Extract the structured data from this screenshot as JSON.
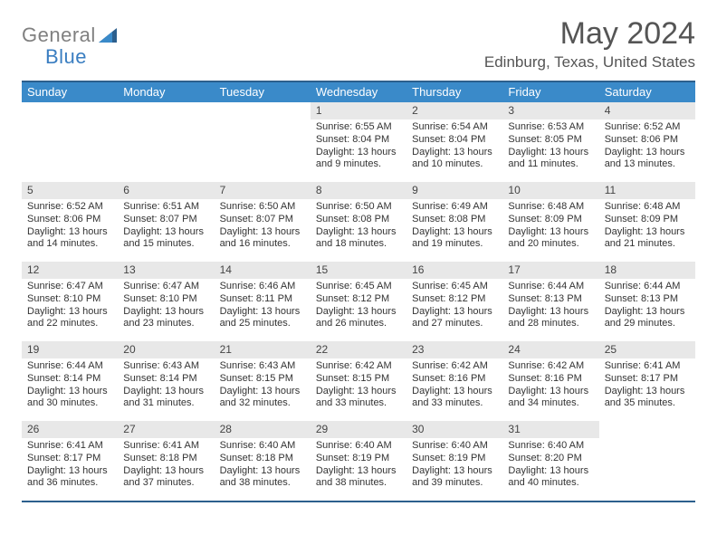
{
  "logo": {
    "text1": "General",
    "text2": "Blue"
  },
  "title": "May 2024",
  "location": "Edinburg, Texas, United States",
  "colors": {
    "header_bg": "#3a8ac9",
    "border": "#2c5f8d",
    "daynum_bg": "#e8e8e8",
    "logo_gray": "#808080",
    "logo_blue": "#3a7ec1",
    "text": "#333333",
    "title_color": "#555555"
  },
  "day_headers": [
    "Sunday",
    "Monday",
    "Tuesday",
    "Wednesday",
    "Thursday",
    "Friday",
    "Saturday"
  ],
  "weeks": [
    [
      {
        "n": "",
        "sr": "",
        "ss": "",
        "dl": ""
      },
      {
        "n": "",
        "sr": "",
        "ss": "",
        "dl": ""
      },
      {
        "n": "",
        "sr": "",
        "ss": "",
        "dl": ""
      },
      {
        "n": "1",
        "sr": "Sunrise: 6:55 AM",
        "ss": "Sunset: 8:04 PM",
        "dl": "Daylight: 13 hours and 9 minutes."
      },
      {
        "n": "2",
        "sr": "Sunrise: 6:54 AM",
        "ss": "Sunset: 8:04 PM",
        "dl": "Daylight: 13 hours and 10 minutes."
      },
      {
        "n": "3",
        "sr": "Sunrise: 6:53 AM",
        "ss": "Sunset: 8:05 PM",
        "dl": "Daylight: 13 hours and 11 minutes."
      },
      {
        "n": "4",
        "sr": "Sunrise: 6:52 AM",
        "ss": "Sunset: 8:06 PM",
        "dl": "Daylight: 13 hours and 13 minutes."
      }
    ],
    [
      {
        "n": "5",
        "sr": "Sunrise: 6:52 AM",
        "ss": "Sunset: 8:06 PM",
        "dl": "Daylight: 13 hours and 14 minutes."
      },
      {
        "n": "6",
        "sr": "Sunrise: 6:51 AM",
        "ss": "Sunset: 8:07 PM",
        "dl": "Daylight: 13 hours and 15 minutes."
      },
      {
        "n": "7",
        "sr": "Sunrise: 6:50 AM",
        "ss": "Sunset: 8:07 PM",
        "dl": "Daylight: 13 hours and 16 minutes."
      },
      {
        "n": "8",
        "sr": "Sunrise: 6:50 AM",
        "ss": "Sunset: 8:08 PM",
        "dl": "Daylight: 13 hours and 18 minutes."
      },
      {
        "n": "9",
        "sr": "Sunrise: 6:49 AM",
        "ss": "Sunset: 8:08 PM",
        "dl": "Daylight: 13 hours and 19 minutes."
      },
      {
        "n": "10",
        "sr": "Sunrise: 6:48 AM",
        "ss": "Sunset: 8:09 PM",
        "dl": "Daylight: 13 hours and 20 minutes."
      },
      {
        "n": "11",
        "sr": "Sunrise: 6:48 AM",
        "ss": "Sunset: 8:09 PM",
        "dl": "Daylight: 13 hours and 21 minutes."
      }
    ],
    [
      {
        "n": "12",
        "sr": "Sunrise: 6:47 AM",
        "ss": "Sunset: 8:10 PM",
        "dl": "Daylight: 13 hours and 22 minutes."
      },
      {
        "n": "13",
        "sr": "Sunrise: 6:47 AM",
        "ss": "Sunset: 8:10 PM",
        "dl": "Daylight: 13 hours and 23 minutes."
      },
      {
        "n": "14",
        "sr": "Sunrise: 6:46 AM",
        "ss": "Sunset: 8:11 PM",
        "dl": "Daylight: 13 hours and 25 minutes."
      },
      {
        "n": "15",
        "sr": "Sunrise: 6:45 AM",
        "ss": "Sunset: 8:12 PM",
        "dl": "Daylight: 13 hours and 26 minutes."
      },
      {
        "n": "16",
        "sr": "Sunrise: 6:45 AM",
        "ss": "Sunset: 8:12 PM",
        "dl": "Daylight: 13 hours and 27 minutes."
      },
      {
        "n": "17",
        "sr": "Sunrise: 6:44 AM",
        "ss": "Sunset: 8:13 PM",
        "dl": "Daylight: 13 hours and 28 minutes."
      },
      {
        "n": "18",
        "sr": "Sunrise: 6:44 AM",
        "ss": "Sunset: 8:13 PM",
        "dl": "Daylight: 13 hours and 29 minutes."
      }
    ],
    [
      {
        "n": "19",
        "sr": "Sunrise: 6:44 AM",
        "ss": "Sunset: 8:14 PM",
        "dl": "Daylight: 13 hours and 30 minutes."
      },
      {
        "n": "20",
        "sr": "Sunrise: 6:43 AM",
        "ss": "Sunset: 8:14 PM",
        "dl": "Daylight: 13 hours and 31 minutes."
      },
      {
        "n": "21",
        "sr": "Sunrise: 6:43 AM",
        "ss": "Sunset: 8:15 PM",
        "dl": "Daylight: 13 hours and 32 minutes."
      },
      {
        "n": "22",
        "sr": "Sunrise: 6:42 AM",
        "ss": "Sunset: 8:15 PM",
        "dl": "Daylight: 13 hours and 33 minutes."
      },
      {
        "n": "23",
        "sr": "Sunrise: 6:42 AM",
        "ss": "Sunset: 8:16 PM",
        "dl": "Daylight: 13 hours and 33 minutes."
      },
      {
        "n": "24",
        "sr": "Sunrise: 6:42 AM",
        "ss": "Sunset: 8:16 PM",
        "dl": "Daylight: 13 hours and 34 minutes."
      },
      {
        "n": "25",
        "sr": "Sunrise: 6:41 AM",
        "ss": "Sunset: 8:17 PM",
        "dl": "Daylight: 13 hours and 35 minutes."
      }
    ],
    [
      {
        "n": "26",
        "sr": "Sunrise: 6:41 AM",
        "ss": "Sunset: 8:17 PM",
        "dl": "Daylight: 13 hours and 36 minutes."
      },
      {
        "n": "27",
        "sr": "Sunrise: 6:41 AM",
        "ss": "Sunset: 8:18 PM",
        "dl": "Daylight: 13 hours and 37 minutes."
      },
      {
        "n": "28",
        "sr": "Sunrise: 6:40 AM",
        "ss": "Sunset: 8:18 PM",
        "dl": "Daylight: 13 hours and 38 minutes."
      },
      {
        "n": "29",
        "sr": "Sunrise: 6:40 AM",
        "ss": "Sunset: 8:19 PM",
        "dl": "Daylight: 13 hours and 38 minutes."
      },
      {
        "n": "30",
        "sr": "Sunrise: 6:40 AM",
        "ss": "Sunset: 8:19 PM",
        "dl": "Daylight: 13 hours and 39 minutes."
      },
      {
        "n": "31",
        "sr": "Sunrise: 6:40 AM",
        "ss": "Sunset: 8:20 PM",
        "dl": "Daylight: 13 hours and 40 minutes."
      },
      {
        "n": "",
        "sr": "",
        "ss": "",
        "dl": ""
      }
    ]
  ]
}
